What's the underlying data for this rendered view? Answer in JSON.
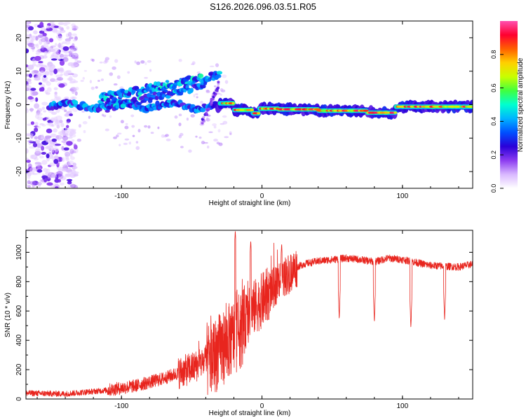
{
  "title": "S126.2026.096.03.51.R05",
  "chart_data": [
    {
      "type": "heatmap",
      "name": "spectrogram",
      "xlabel": "Height of straight line (km)",
      "ylabel": "Frequency (Hz)",
      "xlim": [
        -168,
        150
      ],
      "ylim": [
        -25,
        25
      ],
      "xticks": [
        -100,
        0,
        100
      ],
      "yticks": [
        -20,
        -10,
        0,
        10,
        20
      ],
      "colorbar": {
        "label": "Normalized spectral amplitude",
        "range": [
          0,
          1
        ],
        "ticks": [
          0.0,
          0.2,
          0.4,
          0.6,
          0.8
        ],
        "tick_labels": [
          "0.0",
          "0.2",
          "0.4",
          "0.6",
          "0.8"
        ],
        "colormap": [
          "#ffffff",
          "#d9b8ff",
          "#8c3cf0",
          "#2a00d8",
          "#0050ff",
          "#00b4ff",
          "#00ffd0",
          "#40ff40",
          "#c8ff00",
          "#ffd000",
          "#ff6000",
          "#ff0030",
          "#ff50b0"
        ]
      },
      "features": {
        "carrier_segments": [
          {
            "x": [
              -30,
              -20
            ],
            "y": 0.4
          },
          {
            "x": [
              -20,
              -7
            ],
            "y": -1.6
          },
          {
            "x": [
              -7,
              -2
            ],
            "y": -2.6
          },
          {
            "x": [
              -2,
              12
            ],
            "y": -1.2
          },
          {
            "x": [
              12,
              40
            ],
            "y": -1.4
          },
          {
            "x": [
              40,
              75
            ],
            "y": -1.8
          },
          {
            "x": [
              75,
              95
            ],
            "y": -2.4
          },
          {
            "x": [
              95,
              150
            ],
            "y": -0.6
          }
        ],
        "upper_ridge": {
          "x": [
            -150,
            -30
          ],
          "y": [
            -1,
            9
          ]
        },
        "lower_ridge": {
          "x": [
            -110,
            -40
          ],
          "y": [
            -1,
            6
          ]
        },
        "noise_band_x": [
          -168,
          -132
        ]
      }
    },
    {
      "type": "line",
      "name": "snr",
      "color": "#e8251e",
      "xlabel": "Height of straight line (km)",
      "ylabel": "SNR (10 * v/v)",
      "xlim": [
        -168,
        150
      ],
      "ylim": [
        0,
        1150
      ],
      "xticks": [
        -100,
        0,
        100
      ],
      "yticks": [
        0,
        200,
        400,
        600,
        800,
        1000
      ],
      "trend": {
        "x": [
          -168,
          -140,
          -110,
          -90,
          -70,
          -50,
          -35,
          -25,
          -15,
          -10,
          -5,
          0,
          5,
          10,
          15,
          20,
          25,
          30,
          40,
          60,
          70,
          80,
          90,
          100,
          120,
          140,
          150
        ],
        "y": [
          40,
          35,
          60,
          90,
          140,
          210,
          280,
          380,
          470,
          560,
          630,
          670,
          720,
          780,
          830,
          860,
          900,
          920,
          940,
          960,
          950,
          935,
          960,
          950,
          910,
          900,
          920
        ]
      },
      "dips": [
        {
          "x": 55,
          "y": 540
        },
        {
          "x": 80,
          "y": 520
        },
        {
          "x": 106,
          "y": 480
        },
        {
          "x": 130,
          "y": 530
        }
      ],
      "peaks": [
        {
          "x": -19,
          "y": 1150
        },
        {
          "x": -8,
          "y": 1080
        },
        {
          "x": 14,
          "y": 1060
        }
      ]
    }
  ]
}
